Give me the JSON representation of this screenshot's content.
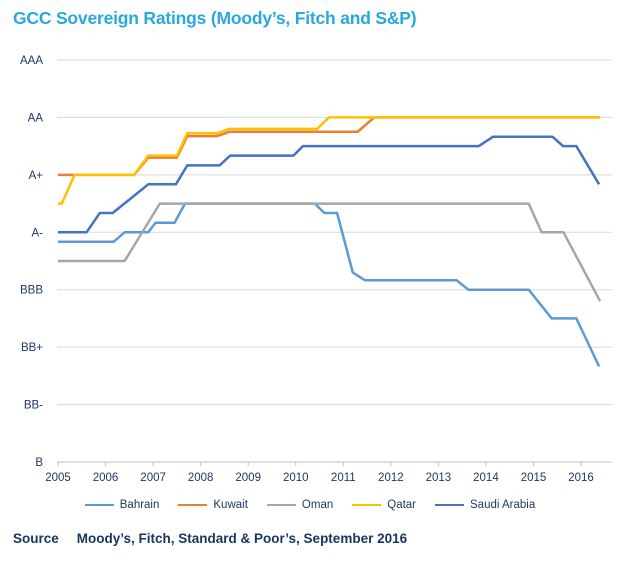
{
  "header": {
    "title": "GCC Sovereign Ratings (Moody’s, Fitch and S&P)"
  },
  "footer": {
    "source_label": "Source",
    "source_text": "Moody’s, Fitch, Standard & Poor’s, September 2016"
  },
  "colors": {
    "title": "#29a8df",
    "axis_text": "#1f3864",
    "axis_line": "#bfbfbf",
    "gridline": "#d9d9d9",
    "background": "#ffffff"
  },
  "chart_data": {
    "type": "line",
    "title": "GCC Sovereign Ratings (Moody’s, Fitch and S&P)",
    "grid": "horizontal",
    "legend_position": "bottom",
    "x_axis": {
      "tick_labels": [
        "2005",
        "2006",
        "2007",
        "2008",
        "2009",
        "2010",
        "2011",
        "2012",
        "2013",
        "2014",
        "2015",
        "2016"
      ],
      "range": [
        2005,
        2016.65
      ],
      "data_end": 2016.4
    },
    "y_axis": {
      "tick_labels": [
        "AAA",
        "AA",
        "A+",
        "A-",
        "BBB",
        "BB+",
        "BB-",
        "B"
      ],
      "tick_values": [
        14,
        12,
        10,
        8,
        6,
        4,
        2,
        0
      ],
      "note": "rating notches: B=0, B+=1, BB-=2, BB=3, BB+=4, BBB-=5, BBB=6, BBB+=7, A-=8, A=9, A+=10, AA-=11, AA=12, AA+=13, AAA=14"
    },
    "series": [
      {
        "name": "Bahrain",
        "color": "#5b9bd5",
        "points": [
          [
            2005.0,
            7.67
          ],
          [
            2006.17,
            7.67
          ],
          [
            2006.4,
            8
          ],
          [
            2006.9,
            8
          ],
          [
            2007.05,
            8.33
          ],
          [
            2007.45,
            8.33
          ],
          [
            2007.67,
            9
          ],
          [
            2010.4,
            9
          ],
          [
            2010.6,
            8.67
          ],
          [
            2010.87,
            8.67
          ],
          [
            2011.2,
            6.6
          ],
          [
            2011.45,
            6.33
          ],
          [
            2013.38,
            6.33
          ],
          [
            2013.63,
            6
          ],
          [
            2014.9,
            6
          ],
          [
            2015.38,
            5
          ],
          [
            2015.9,
            5
          ],
          [
            2016.38,
            3.33
          ]
        ]
      },
      {
        "name": "Kuwait",
        "color": "#ed7d31",
        "points": [
          [
            2005.0,
            10
          ],
          [
            2006.6,
            10
          ],
          [
            2006.9,
            10.6
          ],
          [
            2007.5,
            10.6
          ],
          [
            2007.72,
            11.35
          ],
          [
            2008.35,
            11.35
          ],
          [
            2008.6,
            11.5
          ],
          [
            2011.3,
            11.5
          ],
          [
            2011.65,
            12
          ],
          [
            2016.4,
            12
          ]
        ]
      },
      {
        "name": "Oman",
        "color": "#a6a6a6",
        "points": [
          [
            2005.0,
            7
          ],
          [
            2006.4,
            7
          ],
          [
            2007.14,
            9
          ],
          [
            2014.9,
            9
          ],
          [
            2015.17,
            8
          ],
          [
            2015.63,
            8
          ],
          [
            2016.4,
            5.6
          ]
        ]
      },
      {
        "name": "Qatar",
        "color": "#ffc000",
        "points": [
          [
            2005.0,
            9
          ],
          [
            2005.08,
            9
          ],
          [
            2005.35,
            10
          ],
          [
            2006.6,
            10
          ],
          [
            2006.9,
            10.67
          ],
          [
            2007.5,
            10.67
          ],
          [
            2007.72,
            11.45
          ],
          [
            2008.35,
            11.45
          ],
          [
            2008.6,
            11.6
          ],
          [
            2010.45,
            11.6
          ],
          [
            2010.7,
            12
          ],
          [
            2016.4,
            12
          ]
        ]
      },
      {
        "name": "Saudi Arabia",
        "color": "#4472c4",
        "points": [
          [
            2005.0,
            8
          ],
          [
            2005.6,
            8
          ],
          [
            2005.88,
            8.67
          ],
          [
            2006.15,
            8.67
          ],
          [
            2006.9,
            9.67
          ],
          [
            2007.48,
            9.67
          ],
          [
            2007.72,
            10.33
          ],
          [
            2008.4,
            10.33
          ],
          [
            2008.62,
            10.67
          ],
          [
            2009.95,
            10.67
          ],
          [
            2010.15,
            11
          ],
          [
            2013.85,
            11
          ],
          [
            2014.15,
            11.33
          ],
          [
            2015.4,
            11.33
          ],
          [
            2015.62,
            11
          ],
          [
            2015.9,
            11
          ],
          [
            2016.38,
            9.67
          ]
        ]
      }
    ]
  }
}
